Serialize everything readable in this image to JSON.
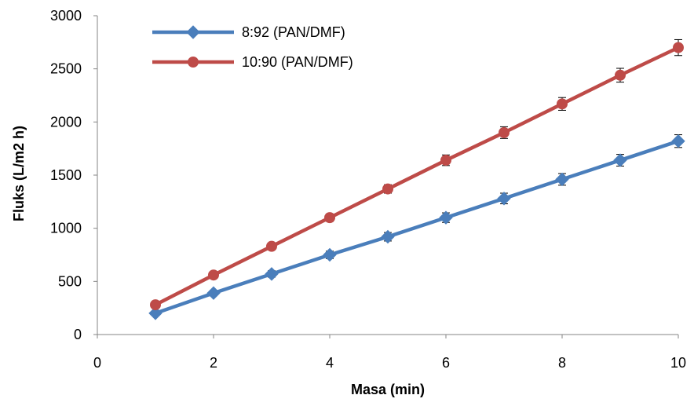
{
  "chart_data": {
    "type": "line",
    "title": "",
    "xlabel": "Masa  (min)",
    "ylabel": "Fluks (L/m2 h)",
    "xlim": [
      0,
      10
    ],
    "ylim": [
      0,
      3000
    ],
    "x_ticks": [
      "0",
      "2",
      "4",
      "6",
      "8",
      "10"
    ],
    "y_ticks": [
      "0",
      "500",
      "1000",
      "1500",
      "2000",
      "2500",
      "3000"
    ],
    "grid": false,
    "legend_position": "top-left",
    "x": [
      1,
      2,
      3,
      4,
      5,
      6,
      7,
      8,
      9,
      10
    ],
    "series": [
      {
        "name": "8:92 (PAN/DMF)",
        "color": "#4a7ebb",
        "marker": "diamond",
        "values": [
          200,
          390,
          570,
          750,
          920,
          1100,
          1280,
          1460,
          1640,
          1820
        ],
        "error": [
          20,
          25,
          30,
          35,
          40,
          45,
          50,
          55,
          55,
          60
        ]
      },
      {
        "name": "10:90 (PAN/DMF)",
        "color": "#be4b48",
        "marker": "circle",
        "values": [
          280,
          560,
          830,
          1100,
          1370,
          1640,
          1900,
          2170,
          2440,
          2700
        ],
        "error": [
          20,
          25,
          30,
          35,
          40,
          50,
          55,
          60,
          65,
          75
        ]
      }
    ]
  }
}
